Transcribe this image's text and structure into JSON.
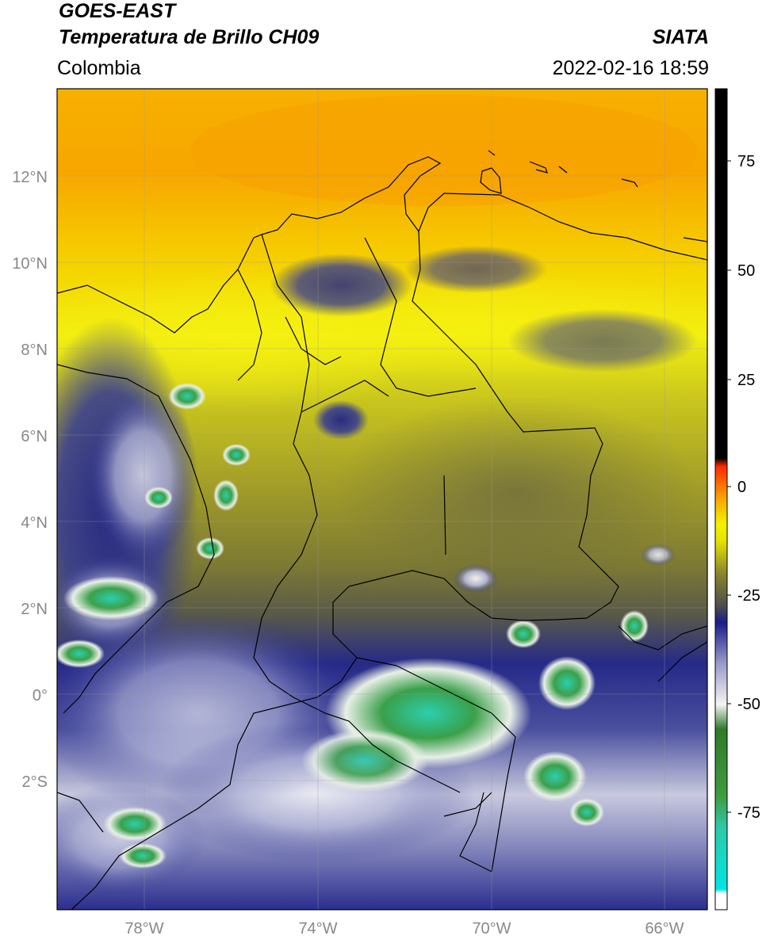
{
  "header": {
    "satellite": "GOES-EAST",
    "product": "Temperatura de Brillo CH09",
    "region": "Colombia",
    "organization": "SIATA",
    "datetime": "2022-02-16 18:59"
  },
  "map": {
    "lon_range": [
      -80.0,
      -65.0
    ],
    "lat_range": [
      -5.0,
      14.0
    ],
    "lat_ticks": [
      {
        "value": 12,
        "label": "12°N"
      },
      {
        "value": 10,
        "label": "10°N"
      },
      {
        "value": 8,
        "label": "8°N"
      },
      {
        "value": 6,
        "label": "6°N"
      },
      {
        "value": 4,
        "label": "4°N"
      },
      {
        "value": 2,
        "label": "2°N"
      },
      {
        "value": 0,
        "label": "0°"
      },
      {
        "value": -2,
        "label": "2°S"
      }
    ],
    "lon_ticks": [
      {
        "value": -78,
        "label": "78°W"
      },
      {
        "value": -74,
        "label": "74°W"
      },
      {
        "value": -70,
        "label": "70°W"
      },
      {
        "value": -66,
        "label": "66°W"
      }
    ],
    "colorbar": {
      "range": [
        -95,
        90
      ],
      "ticks": [
        {
          "value": 75,
          "label": "75"
        },
        {
          "value": 50,
          "label": "50"
        },
        {
          "value": 25,
          "label": "25"
        },
        {
          "value": 0,
          "label": "0"
        },
        {
          "value": -25,
          "label": "-25"
        },
        {
          "value": -50,
          "label": "-50"
        },
        {
          "value": -75,
          "label": "-75"
        }
      ]
    },
    "colors": {
      "warm_orange": "#f7a800",
      "yellow": "#f5f000",
      "olive": "#8f8a2a",
      "gray_olive": "#5f5f4a",
      "navy": "#1c1f8c",
      "white": "#f2f2f2",
      "green": "#3f9a3a",
      "teal": "#2fd1b0",
      "cyan": "#00e0e0",
      "red": "#ff2a00",
      "black": "#000000"
    }
  }
}
